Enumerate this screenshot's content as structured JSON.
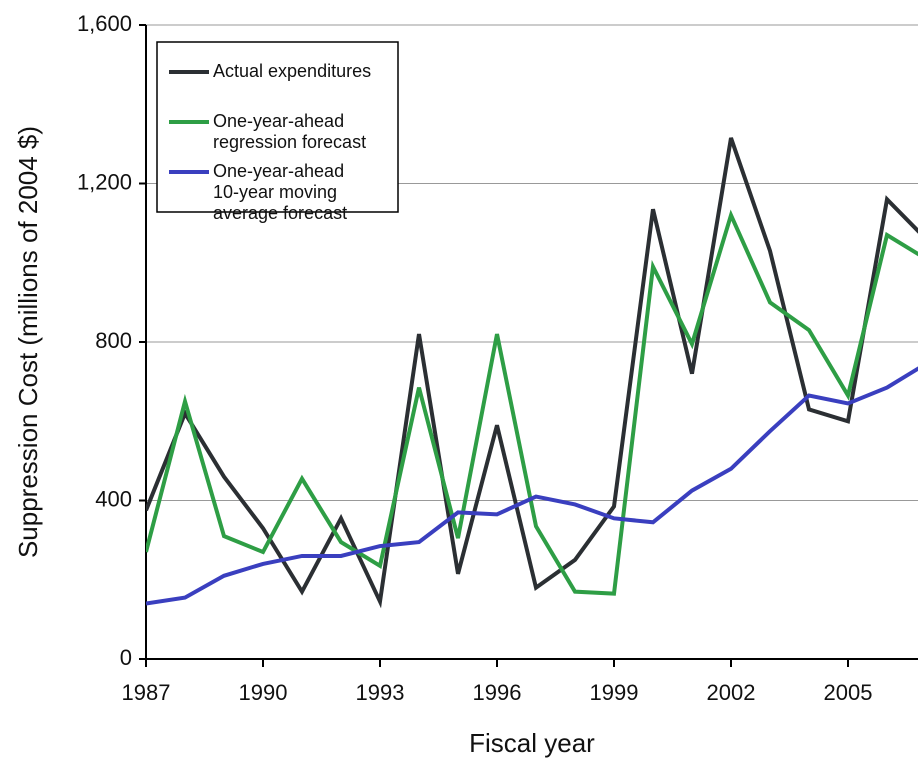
{
  "chart_data": {
    "type": "line",
    "x_label": "Fiscal year",
    "y_label": "Suppression Cost (millions of 2004 $)",
    "x": [
      1987,
      1988,
      1989,
      1990,
      1991,
      1992,
      1993,
      1994,
      1995,
      1996,
      1997,
      1998,
      1999,
      2000,
      2001,
      2002,
      2003,
      2004,
      2005,
      2006,
      2007
    ],
    "series": [
      {
        "name": "Actual expenditures",
        "color": "#2b2f33",
        "values": [
          375,
          620,
          460,
          330,
          170,
          355,
          145,
          820,
          215,
          590,
          180,
          250,
          385,
          1135,
          720,
          1315,
          1030,
          630,
          600,
          1160,
          1060
        ]
      },
      {
        "name": "One-year-ahead regression forecast",
        "color": "#2e9e45",
        "values": [
          270,
          650,
          310,
          270,
          455,
          295,
          235,
          685,
          305,
          820,
          335,
          170,
          165,
          990,
          795,
          1120,
          900,
          830,
          665,
          1070,
          1010
        ]
      },
      {
        "name": "One-year-ahead 10-year moving average forecast",
        "color": "#3a3fbf",
        "values": [
          140,
          155,
          210,
          240,
          260,
          260,
          285,
          295,
          370,
          365,
          410,
          390,
          355,
          345,
          425,
          480,
          575,
          665,
          645,
          685,
          745
        ]
      }
    ],
    "xlim": [
      1987,
      2007
    ],
    "xticks": [
      1987,
      1990,
      1993,
      1996,
      1999,
      2002,
      2005
    ],
    "ylim": [
      0,
      1600
    ],
    "yticks": [
      0,
      400,
      800,
      {
        "value": 1200,
        "label": "1,200"
      },
      {
        "value": 1600,
        "label": "1,600"
      }
    ],
    "grid": true,
    "legend": "upper left"
  }
}
